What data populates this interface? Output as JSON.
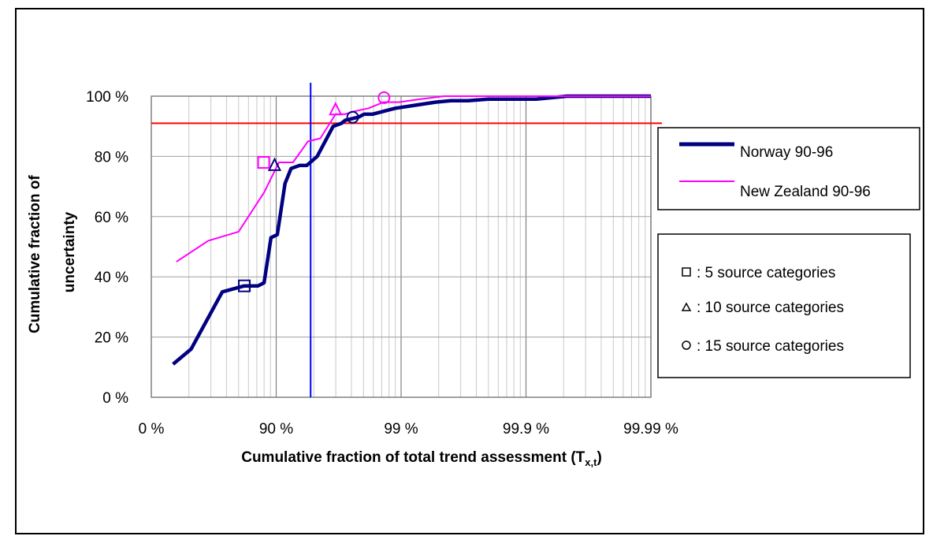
{
  "chart_data": {
    "type": "line",
    "xlabel": "Cumulative fraction of total trend assessment (T",
    "xlabel_sub": "x,t",
    "xlabel_close": ")",
    "ylabel_line1": "Cumulative fraction of",
    "ylabel_line2": "uncertainty",
    "x_scale": "log-complement (1 - x)",
    "x_ticks": [
      "0 %",
      "90 %",
      "99 %",
      "99.9 %",
      "99.99 %"
    ],
    "x_tick_values": [
      0,
      0.9,
      0.99,
      0.999,
      0.9999
    ],
    "y_ticks": [
      "0 %",
      "20 %",
      "40 %",
      "60 %",
      "80 %",
      "100 %"
    ],
    "ylim": [
      0,
      100
    ],
    "grid": true,
    "series": [
      {
        "name": "Norway 90-96",
        "color": "#000080",
        "x": [
          0.33,
          0.52,
          0.73,
          0.82,
          0.86,
          0.875,
          0.89,
          0.902,
          0.915,
          0.924,
          0.935,
          0.943,
          0.953,
          0.965,
          0.97,
          0.972,
          0.978,
          0.9802,
          0.983,
          0.9863,
          0.9889,
          0.9923,
          0.9947,
          0.996,
          0.9971,
          0.998,
          0.99917,
          0.99953,
          1
        ],
        "values": [
          11,
          16,
          35,
          37,
          37,
          38,
          53,
          54,
          71,
          76,
          77,
          77,
          80,
          90,
          91,
          92,
          93,
          94,
          94,
          95,
          96,
          97,
          98,
          98.5,
          98.5,
          99,
          99,
          100,
          100
        ]
      },
      {
        "name": "New Zealand 90-96",
        "color": "#ff00ff",
        "x": [
          0.37,
          0.65,
          0.8,
          0.875,
          0.905,
          0.9266,
          0.9444,
          0.9557,
          0.9665,
          0.9717,
          0.9765,
          0.9818,
          0.9862,
          0.98957,
          0.993,
          0.9955,
          1
        ],
        "values": [
          45,
          52,
          55,
          68,
          78,
          78,
          85,
          86,
          94,
          94,
          95,
          96,
          98,
          98,
          99,
          100,
          100
        ]
      }
    ],
    "markers": [
      {
        "series": "Norway 90-96",
        "shape": "square",
        "x": 0.82,
        "y": 37
      },
      {
        "series": "Norway 90-96",
        "shape": "triangle",
        "x": 0.897,
        "y": 77
      },
      {
        "series": "Norway 90-96",
        "shape": "circle",
        "x": 0.9756,
        "y": 93
      },
      {
        "series": "New Zealand 90-96",
        "shape": "square",
        "x": 0.874,
        "y": 78
      },
      {
        "series": "New Zealand 90-96",
        "shape": "triangle",
        "x": 0.9665,
        "y": 95.5
      },
      {
        "series": "New Zealand 90-96",
        "shape": "circle",
        "x": 0.9863,
        "y": 99.5
      }
    ],
    "reference_lines": [
      {
        "orientation": "horizontal",
        "y": 91,
        "color": "#ff0000"
      },
      {
        "orientation": "vertical",
        "x": 0.947,
        "color": "#0000ff"
      }
    ],
    "legend": {
      "placement": "right",
      "lines": [
        {
          "label": "Norway 90-96",
          "color": "#000080"
        },
        {
          "label": "New Zealand 90-96",
          "color": "#ff00ff"
        }
      ],
      "markers": [
        {
          "shape": "square",
          "label": ": 5 source categories"
        },
        {
          "shape": "triangle",
          "label": ": 10 source categories"
        },
        {
          "shape": "circle",
          "label": ": 15 source categories"
        }
      ]
    }
  }
}
